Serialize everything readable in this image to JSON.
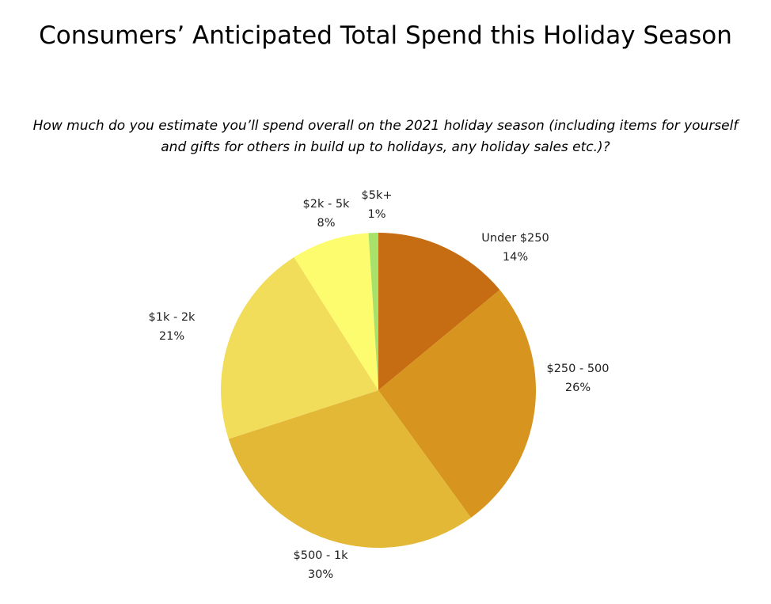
{
  "chart_data": {
    "type": "pie",
    "title": "Consumers’ Anticipated Total Spend this Holiday Season",
    "subtitle": "How much do you estimate you’ll spend overall on the 2021 holiday season (including items for yourself and gifts for others in build up to holidays, any holiday sales etc.)?",
    "start": "top",
    "direction": "clockwise",
    "slices": [
      {
        "label": "Under $250",
        "value": 14,
        "value_label": "14%",
        "color": "#C66C12"
      },
      {
        "label": "$250 - 500",
        "value": 26,
        "value_label": "26%",
        "color": "#D7941F"
      },
      {
        "label": "$500 - 1k",
        "value": 30,
        "value_label": "30%",
        "color": "#E3B836"
      },
      {
        "label": "$1k - 2k",
        "value": 21,
        "value_label": "21%",
        "color": "#F2DD5B"
      },
      {
        "label": "$2k - 5k",
        "value": 8,
        "value_label": "8%",
        "color": "#FDFB6E"
      },
      {
        "label": "$5k+",
        "value": 1,
        "value_label": "1%",
        "color": "#A9E26B"
      }
    ]
  }
}
